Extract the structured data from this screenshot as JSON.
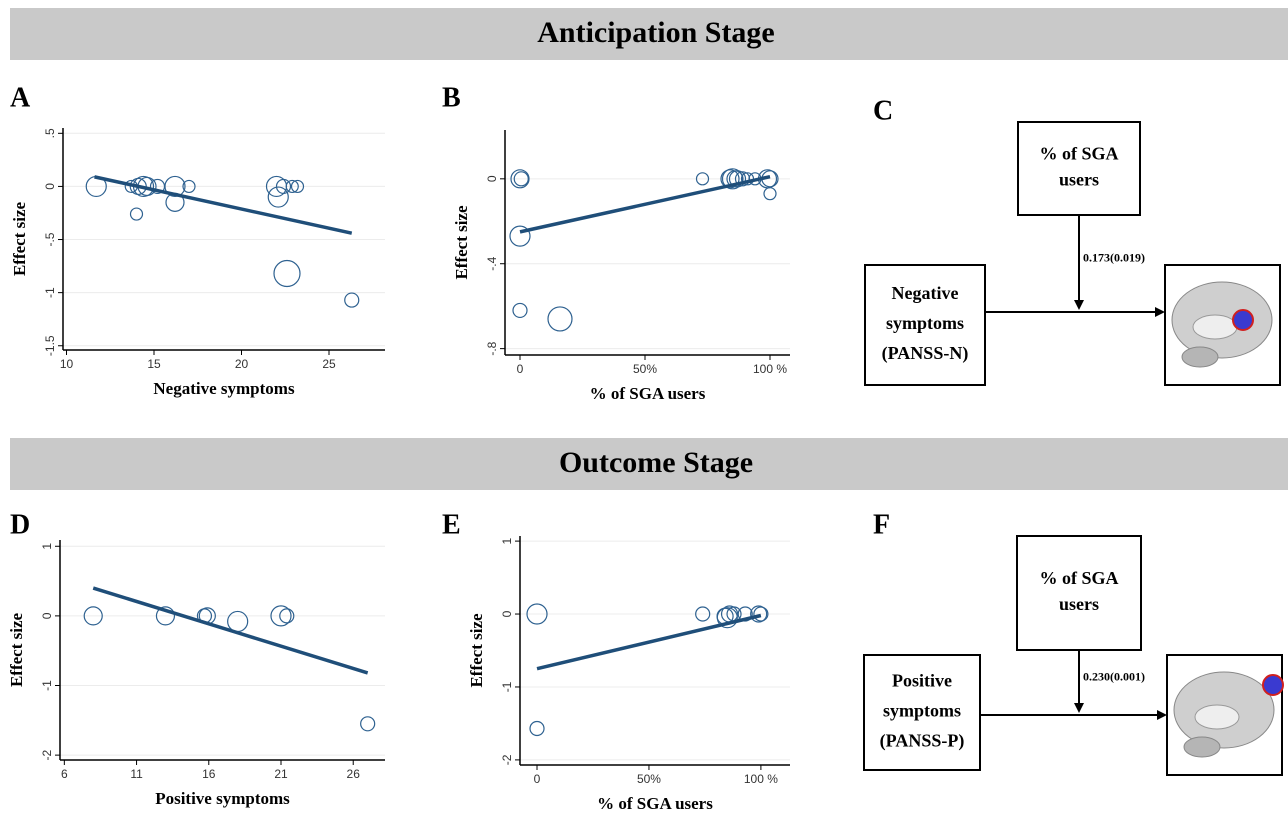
{
  "sections": [
    "Anticipation Stage",
    "Outcome Stage"
  ],
  "chart_data": [
    {
      "type": "scatter",
      "panel": "A",
      "xlabel": "Negative symptoms",
      "ylabel": "Effect size",
      "xlim": [
        9.8,
        28.2
      ],
      "ylim": [
        -1.54,
        0.55
      ],
      "xticks": [
        10,
        15,
        20,
        25
      ],
      "yticks": [
        {
          "value": 0.5,
          "label": ".5"
        },
        0,
        {
          "value": -0.5,
          "label": "-.5"
        },
        -1,
        -1.5
      ],
      "grid": true,
      "color": "#2e6190",
      "line_color": "#1f4e79",
      "x": [
        11.7,
        13.7,
        14.1,
        14.4,
        14.6,
        15.2,
        16.2,
        16.2,
        17,
        14,
        22,
        22.1,
        22.4,
        22.6,
        22.9,
        23.2,
        26.3
      ],
      "y": [
        0,
        0,
        0,
        0,
        0,
        0,
        0,
        -0.15,
        0,
        -0.26,
        0,
        -0.1,
        0,
        -0.82,
        0,
        0,
        -1.07
      ],
      "sizes": [
        10,
        6,
        8,
        10,
        9,
        7,
        10,
        9,
        6,
        6,
        10,
        10,
        7,
        13,
        6,
        6,
        7
      ],
      "fit_x": [
        11.6,
        26.3
      ],
      "fit_y": [
        0.09,
        -0.44
      ]
    },
    {
      "type": "scatter",
      "panel": "B",
      "xlabel": "% of SGA users",
      "ylabel": "Effect size",
      "xlim": [
        -6,
        108
      ],
      "ylim": [
        -0.83,
        0.23
      ],
      "xticks": [
        0,
        {
          "value": 50,
          "label": "50%"
        },
        {
          "value": 100,
          "label": "100 %"
        }
      ],
      "yticks": [
        0,
        {
          "value": -0.4,
          "label": "-.4"
        },
        {
          "value": -0.8,
          "label": "-.8"
        }
      ],
      "grid": true,
      "color": "#2e6190",
      "line_color": "#1f4e79",
      "x": [
        0,
        0.5,
        0,
        0,
        16,
        73,
        84,
        85,
        86,
        87,
        89,
        91,
        94,
        99,
        100,
        100
      ],
      "y": [
        0,
        0,
        -0.27,
        -0.62,
        -0.66,
        0,
        0,
        0,
        0,
        0,
        0,
        0,
        0,
        0,
        0,
        -0.07
      ],
      "sizes": [
        9,
        7,
        10,
        7,
        12,
        6,
        9,
        10,
        8,
        8,
        7,
        6,
        6,
        9,
        8,
        6
      ],
      "fit_x": [
        0,
        100
      ],
      "fit_y": [
        -0.25,
        0.01
      ]
    },
    {
      "type": "scatter",
      "panel": "D",
      "xlabel": "Positive symptoms",
      "ylabel": "Effect size",
      "xlim": [
        5.7,
        28.2
      ],
      "ylim": [
        -2.07,
        1.09
      ],
      "xticks": [
        6,
        11,
        16,
        21,
        26
      ],
      "yticks": [
        1,
        0,
        -1,
        -2
      ],
      "grid": true,
      "color": "#2e6190",
      "line_color": "#1f4e79",
      "x": [
        8,
        13,
        15.7,
        15.9,
        18,
        21,
        21.4,
        27
      ],
      "y": [
        0,
        0,
        0,
        0,
        -0.08,
        0,
        0,
        -1.55
      ],
      "sizes": [
        9,
        9,
        7,
        8,
        10,
        10,
        7,
        7
      ],
      "fit_x": [
        8,
        27
      ],
      "fit_y": [
        0.4,
        -0.82
      ]
    },
    {
      "type": "scatter",
      "panel": "E",
      "xlabel": "% of SGA users",
      "ylabel": "Effect size",
      "xlim": [
        -7.6,
        113
      ],
      "ylim": [
        -2.07,
        1.07
      ],
      "xticks": [
        0,
        {
          "value": 50,
          "label": "50%"
        },
        {
          "value": 100,
          "label": "100 %"
        }
      ],
      "yticks": [
        1,
        0,
        -1,
        -2
      ],
      "grid": true,
      "color": "#2e6190",
      "line_color": "#1f4e79",
      "x": [
        0,
        0,
        74,
        84,
        85,
        86,
        88,
        93,
        99,
        100
      ],
      "y": [
        0,
        -1.57,
        0,
        -0.03,
        -0.05,
        0,
        0,
        0,
        0,
        0
      ],
      "sizes": [
        10,
        7,
        7,
        8,
        10,
        8,
        7,
        7,
        8,
        7
      ],
      "fit_x": [
        0,
        100
      ],
      "fit_y": [
        -0.75,
        -0.02
      ]
    }
  ],
  "diagrams": [
    {
      "panel": "C",
      "moderator": [
        "% of SGA",
        "users"
      ],
      "predictor": [
        "Negative",
        "symptoms",
        "(PANSS-N)"
      ],
      "coefficient": "0.173(0.019)"
    },
    {
      "panel": "F",
      "moderator": [
        "% of SGA",
        "users"
      ],
      "predictor": [
        "Positive",
        "symptoms",
        "(PANSS-P)"
      ],
      "coefficient": "0.230(0.001)"
    }
  ]
}
